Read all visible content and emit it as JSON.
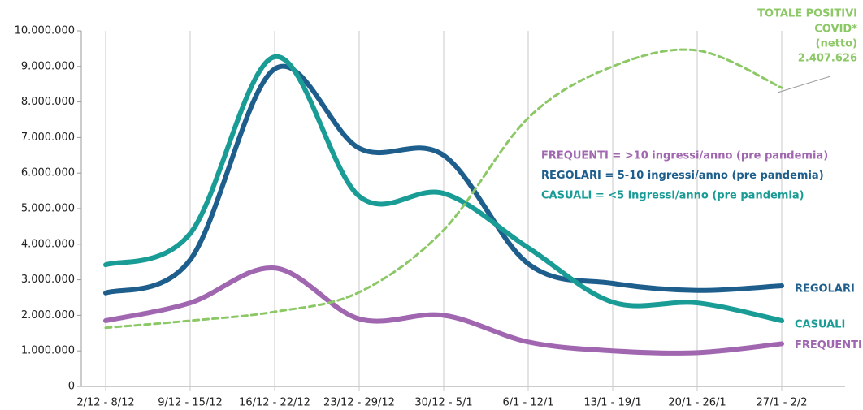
{
  "chart_data": {
    "type": "line",
    "categories": [
      "2/12 - 8/12",
      "9/12 - 15/12",
      "16/12 - 22/12",
      "23/12 - 29/12",
      "30/12 - 5/1",
      "6/1 - 12/1",
      "13/1 - 19/1",
      "20/1 - 26/1",
      "27/1 - 2/2"
    ],
    "series": [
      {
        "name": "REGOLARI",
        "color": "#1d5e8c",
        "values": [
          2630000,
          3560000,
          8930000,
          6700000,
          6500000,
          3450000,
          2900000,
          2700000,
          2830000
        ]
      },
      {
        "name": "CASUALI",
        "color": "#1a9c96",
        "values": [
          3420000,
          4300000,
          9270000,
          5350000,
          5430000,
          3900000,
          2370000,
          2350000,
          1850000
        ]
      },
      {
        "name": "FREQUENTI",
        "color": "#a066b0",
        "values": [
          1850000,
          2350000,
          3330000,
          1900000,
          2000000,
          1250000,
          1000000,
          950000,
          1200000
        ]
      },
      {
        "name": "TOTALE POSITIVI",
        "color": "#8cc866",
        "dashed": true,
        "values": [
          1650000,
          1850000,
          2100000,
          2650000,
          4400000,
          7550000,
          9000000,
          9450000,
          8400000
        ]
      }
    ],
    "annotations": [
      "COVID*",
      "(netto)",
      "2.407.626"
    ],
    "definitions": [
      {
        "text": "FREQUENTI = >10 ingressi/anno (pre pandemia)",
        "color": "#a066b0"
      },
      {
        "text": "REGOLARI = 5-10 ingressi/anno (pre pandemia)",
        "color": "#1d5e8c"
      },
      {
        "text": "CASUALI = <5 ingressi/anno (pre pandemia)",
        "color": "#1a9c96"
      }
    ],
    "ylim": [
      0,
      10000000
    ],
    "yticks": [
      {
        "value": 0,
        "label": "0"
      },
      {
        "value": 1000000,
        "label": "1.000.000"
      },
      {
        "value": 2000000,
        "label": "2.000.000"
      },
      {
        "value": 3000000,
        "label": "3.000.000"
      },
      {
        "value": 4000000,
        "label": "4.000.000"
      },
      {
        "value": 5000000,
        "label": "5.000.000"
      },
      {
        "value": 6000000,
        "label": "6.000.000"
      },
      {
        "value": 7000000,
        "label": "7.000.000"
      },
      {
        "value": 8000000,
        "label": "8.000.000"
      },
      {
        "value": 9000000,
        "label": "9.000.000"
      },
      {
        "value": 10000000,
        "label": "10.000.000"
      }
    ],
    "grid": true
  }
}
